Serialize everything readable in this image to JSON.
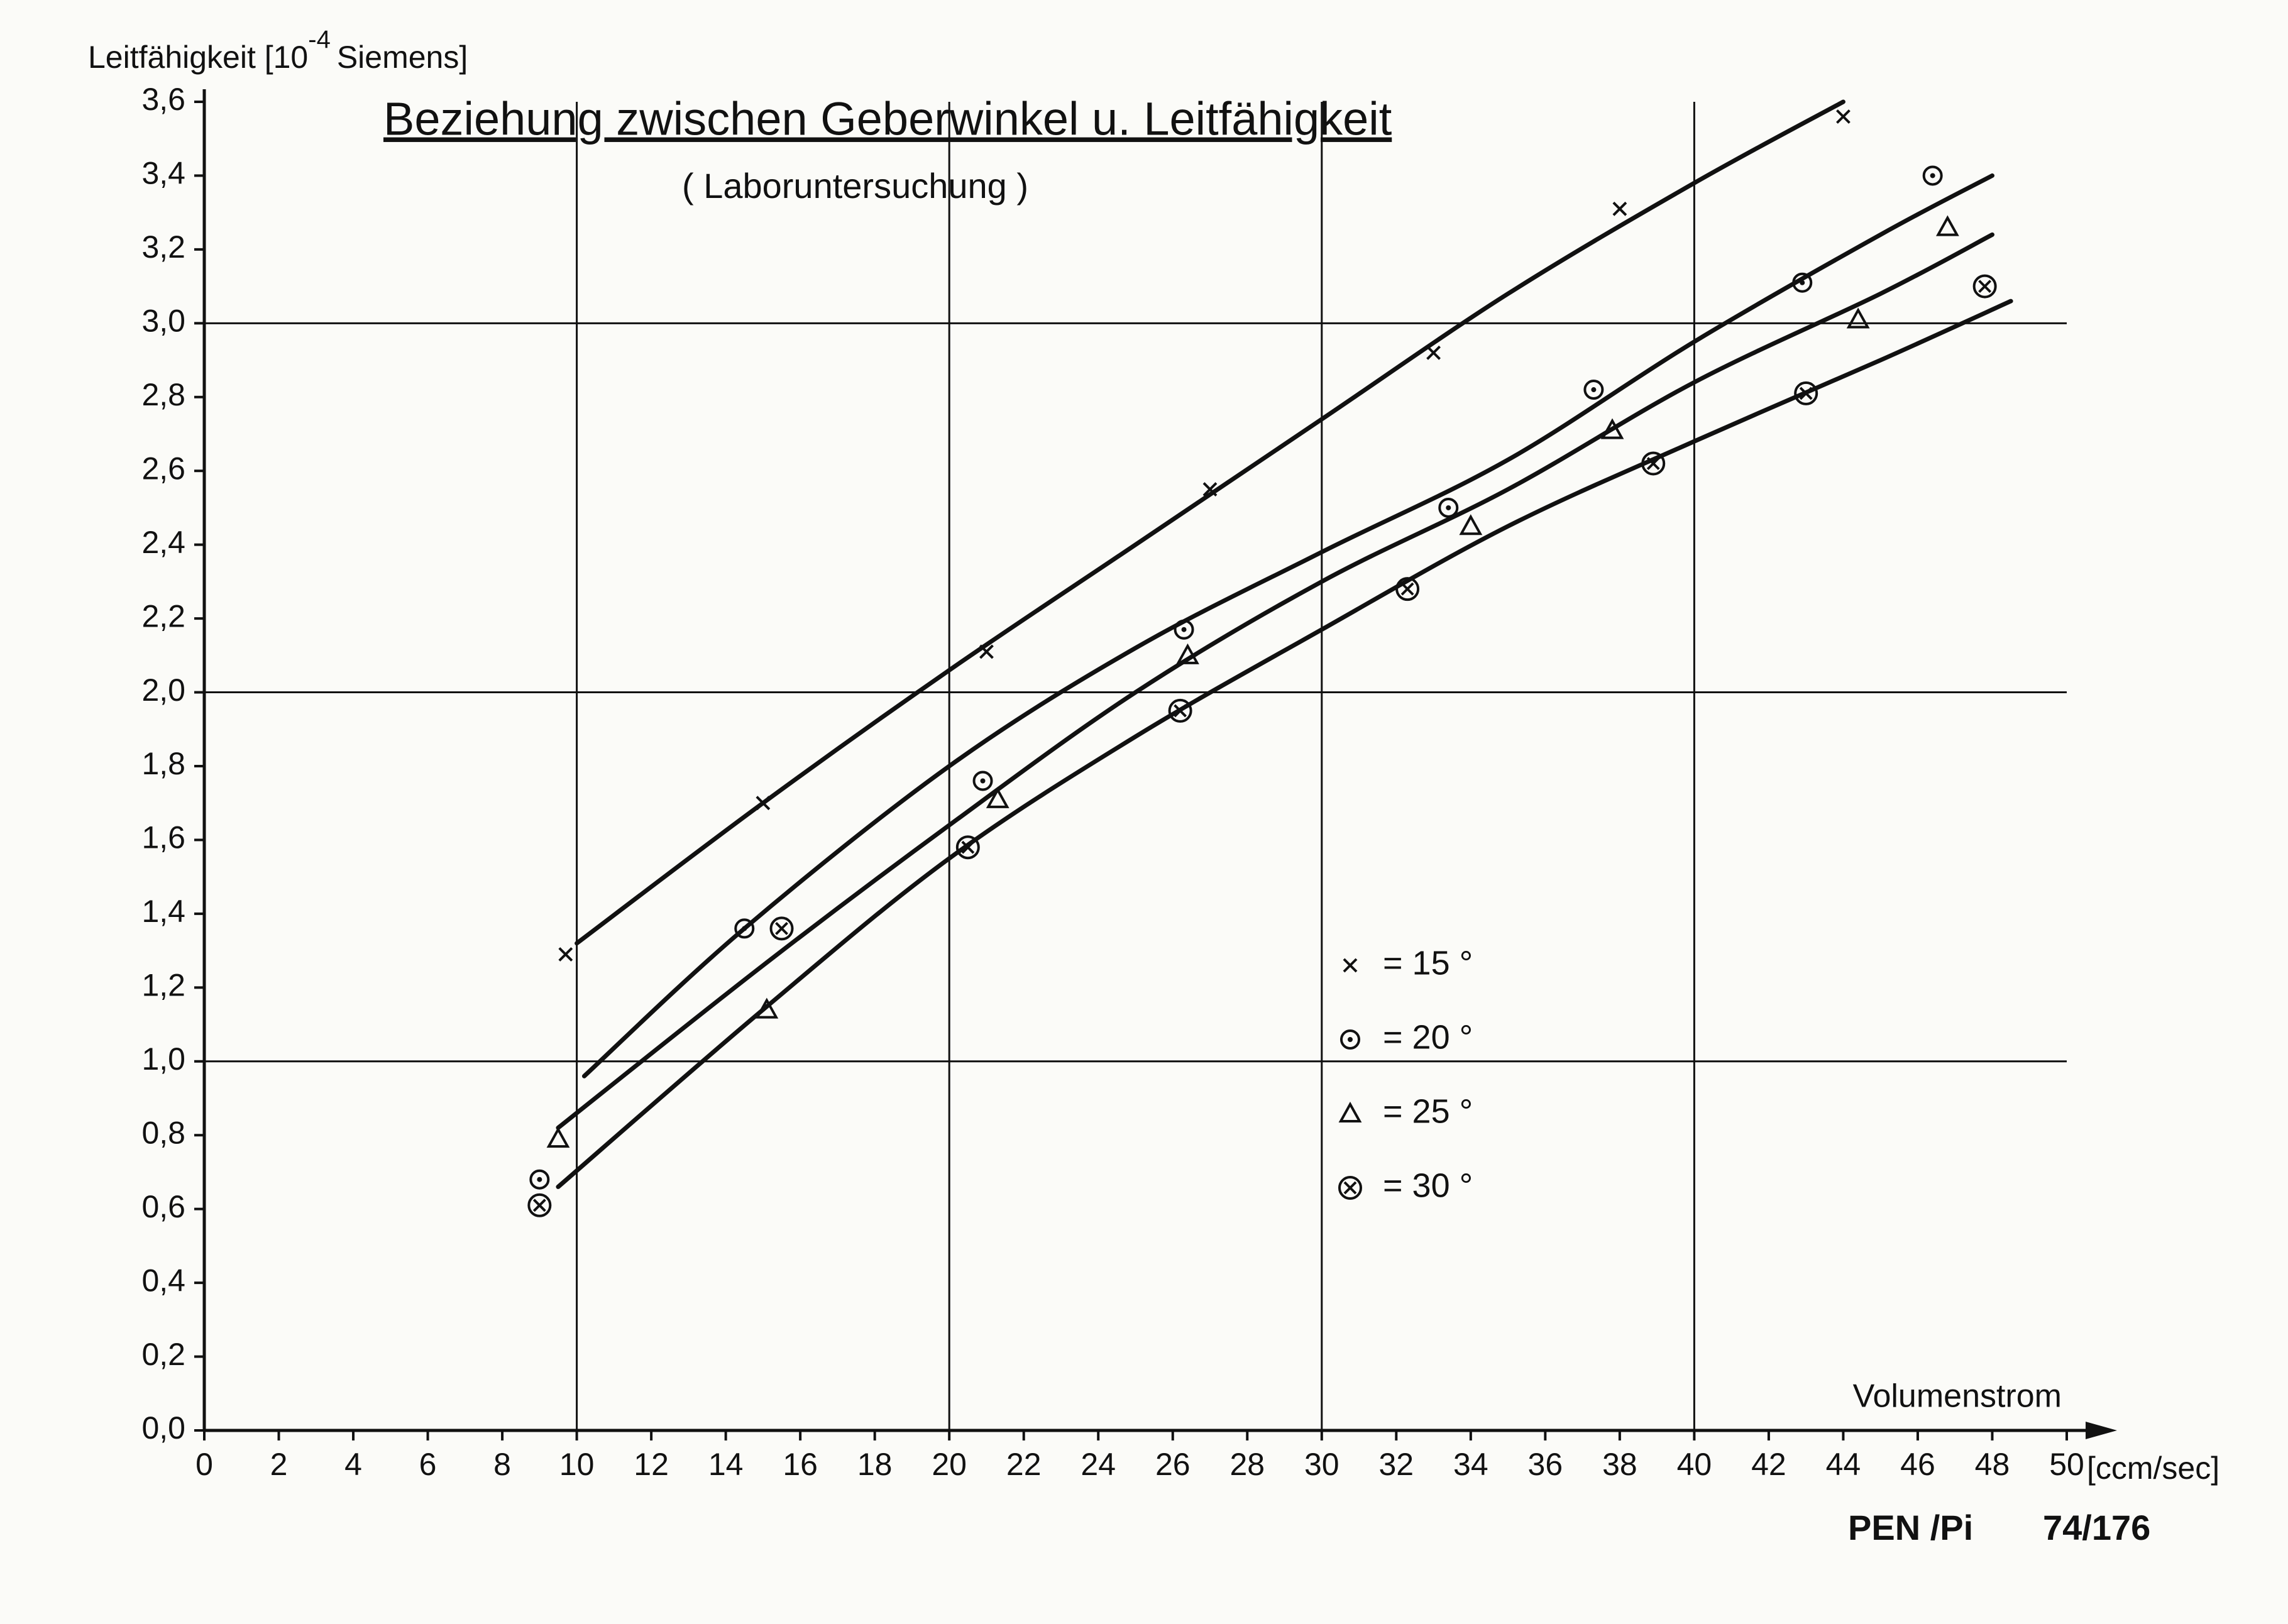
{
  "chart_data": {
    "type": "scatter",
    "title": "Beziehung zwischen Geberwinkel u. Leitfähigkeit",
    "subtitle": "( Laboruntersuchung )",
    "y_label": {
      "base": "Leitfähigkeit [10",
      "exponent": "-4",
      "unit": "Siemens]"
    },
    "x_label": "Volumenstrom",
    "x_unit": "[ccm/sec]",
    "footer": {
      "code": "PEN /Pi",
      "number": "74/176"
    },
    "xlim": [
      0,
      50
    ],
    "ylim": [
      0,
      3.6
    ],
    "xticks": [
      0,
      2,
      4,
      6,
      8,
      10,
      12,
      14,
      16,
      18,
      20,
      22,
      24,
      26,
      28,
      30,
      32,
      34,
      36,
      38,
      40,
      42,
      44,
      46,
      48,
      50
    ],
    "yticks": [
      {
        "value": 0,
        "label": "0,0"
      },
      {
        "value": 0.2,
        "label": "0,2"
      },
      {
        "value": 0.4,
        "label": "0,4"
      },
      {
        "value": 0.6,
        "label": "0,6"
      },
      {
        "value": 0.8,
        "label": "0,8"
      },
      {
        "value": 1,
        "label": "1,0"
      },
      {
        "value": 1.2,
        "label": "1,2"
      },
      {
        "value": 1.4,
        "label": "1,4"
      },
      {
        "value": 1.6,
        "label": "1,6"
      },
      {
        "value": 1.8,
        "label": "1,8"
      },
      {
        "value": 2,
        "label": "2,0"
      },
      {
        "value": 2.2,
        "label": "2,2"
      },
      {
        "value": 2.4,
        "label": "2,4"
      },
      {
        "value": 2.6,
        "label": "2,6"
      },
      {
        "value": 2.8,
        "label": "2,8"
      },
      {
        "value": 3,
        "label": "3,0"
      },
      {
        "value": 3.2,
        "label": "3,2"
      },
      {
        "value": 3.4,
        "label": "3,4"
      },
      {
        "value": 3.6,
        "label": "3,6"
      }
    ],
    "xgrid": [
      10,
      20,
      30,
      40
    ],
    "ygrid": [
      1,
      2,
      3
    ],
    "color": "#111111",
    "series": [
      {
        "name": "= 15 °",
        "marker": "cross",
        "x": [
          9.7,
          15,
          21,
          27,
          33,
          38,
          44
        ],
        "values": [
          1.29,
          1.7,
          2.11,
          2.55,
          2.92,
          3.31,
          3.56
        ],
        "curve": {
          "x": [
            10,
            15,
            20,
            25,
            30,
            35,
            40,
            44
          ],
          "values": [
            1.32,
            1.7,
            2.06,
            2.4,
            2.74,
            3.08,
            3.38,
            3.6
          ]
        }
      },
      {
        "name": "= 20 °",
        "marker": "dot-circle",
        "x": [
          9,
          14.5,
          20.9,
          26.3,
          33.4,
          37.3,
          42.9,
          46.4
        ],
        "values": [
          0.68,
          1.36,
          1.76,
          2.17,
          2.5,
          2.82,
          3.11,
          3.4
        ],
        "curve": {
          "x": [
            10.2,
            14.5,
            20,
            25,
            30,
            35,
            40,
            45,
            48
          ],
          "values": [
            0.96,
            1.36,
            1.8,
            2.12,
            2.38,
            2.63,
            2.95,
            3.24,
            3.4
          ]
        }
      },
      {
        "name": "= 25 °",
        "marker": "triangle",
        "x": [
          9.5,
          15.1,
          21.3,
          26.4,
          34,
          37.8,
          44.4,
          46.8
        ],
        "values": [
          0.79,
          1.14,
          1.71,
          2.1,
          2.45,
          2.71,
          3.01,
          3.26
        ],
        "curve": {
          "x": [
            9.5,
            15,
            20,
            25,
            30,
            35,
            40,
            45,
            48
          ],
          "values": [
            0.82,
            1.26,
            1.64,
            2.0,
            2.3,
            2.55,
            2.84,
            3.08,
            3.24
          ]
        }
      },
      {
        "name": "= 30 °",
        "marker": "x-circle",
        "x": [
          9,
          15.5,
          20.5,
          26.2,
          32.3,
          38.9,
          43,
          47.8
        ],
        "values": [
          0.61,
          1.36,
          1.58,
          1.95,
          2.28,
          2.62,
          2.81,
          3.1
        ],
        "curve": {
          "x": [
            9.5,
            15,
            20,
            25,
            30,
            35,
            40,
            45,
            48.5
          ],
          "values": [
            0.66,
            1.14,
            1.55,
            1.88,
            2.17,
            2.45,
            2.68,
            2.9,
            3.06
          ]
        }
      }
    ]
  }
}
